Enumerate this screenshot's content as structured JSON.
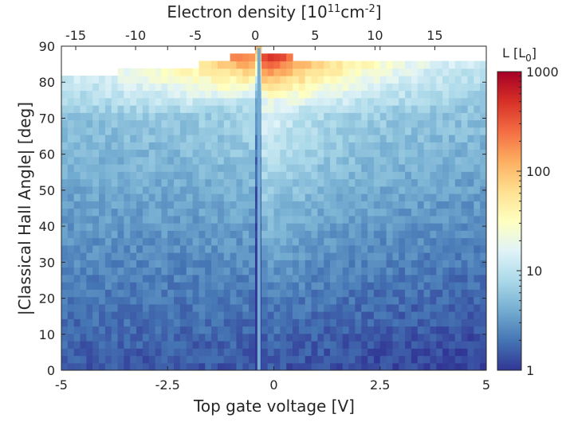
{
  "chart_data": {
    "type": "heatmap",
    "xlabel": "Top gate voltage [V]",
    "x_ticks": [
      "-5",
      "-2.5",
      "0",
      "2.5",
      "5"
    ],
    "xlim": [
      -5,
      5
    ],
    "x2label_prefix": "Electron density [10",
    "x2label_exp1": "11",
    "x2label_mid": "cm",
    "x2label_exp2": "-2",
    "x2label_suffix": "]",
    "x2_ticks": [
      "-15",
      "-10",
      "-5",
      "0",
      "5",
      "10",
      "15"
    ],
    "x2_tick_values": [
      -15,
      -10,
      -5,
      0,
      5,
      10,
      15
    ],
    "x2_to_x": {
      "density_at_minus5V": -16.2,
      "density_at_plus5V": 19.3
    },
    "ylabel": "|Classical Hall Angle| [deg]",
    "y_ticks": [
      "0",
      "10",
      "20",
      "30",
      "40",
      "50",
      "60",
      "70",
      "80",
      "90"
    ],
    "ylim": [
      0,
      90
    ],
    "colorbar": {
      "label_main": "L [L",
      "label_sub": "0",
      "label_end": "]",
      "scale": "log",
      "range": [
        1,
        1000
      ],
      "ticks": [
        "1",
        "10",
        "100",
        "1000"
      ],
      "tick_values": [
        1,
        10,
        100,
        1000
      ],
      "colormap": [
        "#313695",
        "#4575b4",
        "#74add1",
        "#abd9e9",
        "#e0f3f8",
        "#ffffbf",
        "#fee090",
        "#fdae61",
        "#f46d43",
        "#d73027",
        "#a50026"
      ]
    },
    "features": {
      "dip_voltage": -0.35,
      "upper_boundary_left_deg": 82,
      "upper_boundary_right_deg": 86
    }
  }
}
